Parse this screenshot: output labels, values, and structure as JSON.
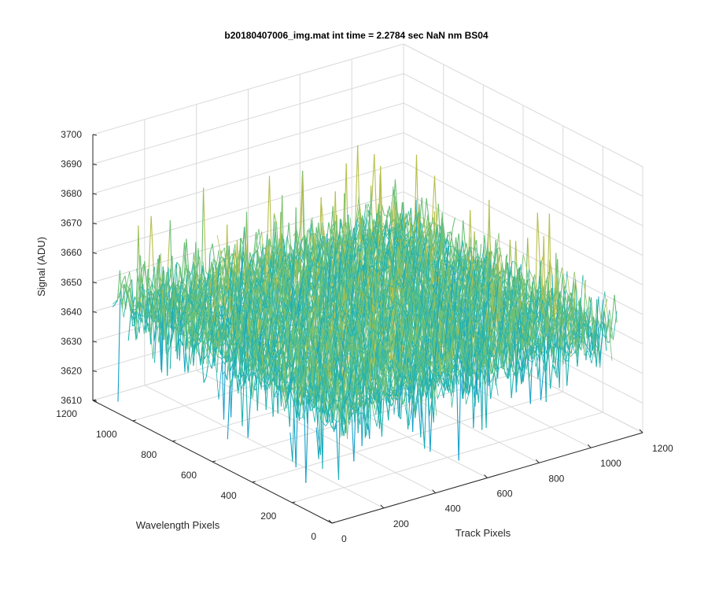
{
  "chart_data": {
    "type": "surface",
    "title": "b20180407006_img.mat int time = 2.2784 sec  NaN nm BS04",
    "xlabel": "Track Pixels",
    "ylabel": "Wavelength Pixels",
    "zlabel": "Signal (ADU)",
    "xlim": [
      0,
      1200
    ],
    "ylim": [
      0,
      1200
    ],
    "zlim": [
      3610,
      3700
    ],
    "x_ticks": [
      "0",
      "200",
      "400",
      "600",
      "800",
      "1000",
      "1200"
    ],
    "y_ticks": [
      "0",
      "200",
      "400",
      "600",
      "800",
      "1000",
      "1200"
    ],
    "z_ticks": [
      "3610",
      "3620",
      "3630",
      "3640",
      "3650",
      "3660",
      "3670",
      "3680",
      "3690",
      "3700"
    ],
    "grid": true,
    "data_summary": {
      "x_extent": [
        0,
        1100
      ],
      "y_extent": [
        0,
        1100
      ],
      "signal_mean": 3647,
      "signal_min": 3612,
      "signal_max": 3693,
      "signal_std": 10
    },
    "colormap": [
      "#0072bd",
      "#169fcb",
      "#23b3b0",
      "#6cc079",
      "#b7bf4c",
      "#e5b93a",
      "#f2c94b"
    ]
  }
}
